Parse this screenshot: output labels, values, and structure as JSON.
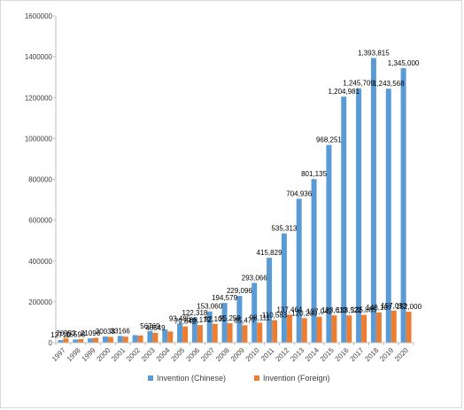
{
  "chart_data": {
    "type": "bar",
    "title": "",
    "xlabel": "",
    "ylabel": "",
    "ylim": [
      0,
      1600000
    ],
    "y_ticks": [
      "0",
      "200000",
      "400000",
      "600000",
      "800000",
      "1000000",
      "1200000",
      "1400000",
      "1600000"
    ],
    "categories": [
      "1997",
      "1998",
      "1999",
      "2000",
      "2001",
      "2002",
      "2003",
      "2004",
      "2005",
      "2006",
      "2007",
      "2008",
      "2009",
      "2010",
      "2011",
      "2012",
      "2013",
      "2014",
      "2015",
      "2016",
      "2017",
      "2018",
      "2019",
      "2020"
    ],
    "grid": false,
    "legend_position": "bottom",
    "series": [
      {
        "name": "Invention (Chinese)",
        "color": "#5b9bd5",
        "values": [
          12710,
          15598,
          21096,
          30038,
          33166,
          37000,
          56769,
          65000,
          93485,
          122318,
          153060,
          194579,
          229096,
          293066,
          415829,
          535313,
          704936,
          801135,
          968251,
          1204981,
          1245709,
          1393815,
          1243568,
          1345000
        ],
        "labels": [
          "12710",
          "15598",
          "21096",
          "30038",
          "33166",
          "",
          "56769",
          "",
          "93,485",
          "122,318",
          "153,060",
          "194,579",
          "229,096",
          "293,066",
          "415,829",
          "535,313",
          "704,936",
          "801,135",
          "968,251",
          "1,204,981",
          "1,245,709",
          "1,393,815",
          "1,243,568",
          "1,345,000"
        ]
      },
      {
        "name": "Invention (Foreign)",
        "color": "#ed7d31",
        "values": [
          20953,
          18000,
          24000,
          28000,
          30000,
          35000,
          48549,
          55000,
          79842,
          86172,
          92101,
          95259,
          85477,
          98111,
          110583,
          137464,
          120200,
          127042,
          133613,
          133522,
          135885,
          148187,
          157093,
          152000
        ],
        "labels": [
          "20953",
          "",
          "",
          "",
          "",
          "",
          "48549",
          "",
          "79,842",
          "86,172",
          "92,101",
          "95,259",
          "85,477",
          "98,111",
          "110,583",
          "137,464",
          "120,200",
          "127,042",
          "133,613",
          "133,522",
          "135,885",
          "148,187",
          "157,093",
          "152,000"
        ]
      }
    ]
  }
}
